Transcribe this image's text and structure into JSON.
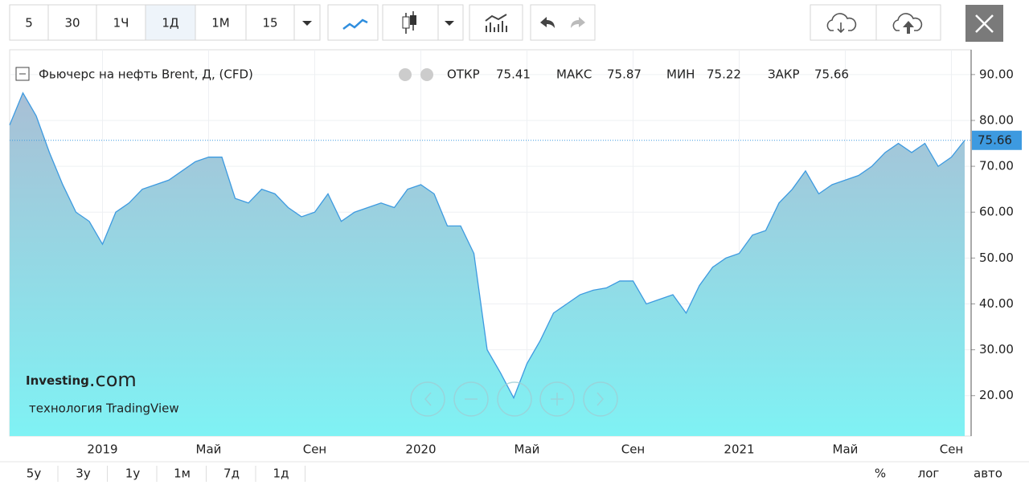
{
  "toolbar": {
    "intervals": [
      "5",
      "30",
      "1Ч",
      "1Д",
      "1М",
      "15"
    ]
  },
  "legend": {
    "title": "Фьючерс на нефть Brent, Д, (CFD)",
    "open_label": "ОТКР",
    "open": 75.41,
    "high_label": "МАКС",
    "high": 75.87,
    "low_label": "МИН",
    "low": 75.22,
    "close_label": "ЗАКР",
    "close": 75.66
  },
  "watermark": {
    "brand": "Investing",
    "brand_suffix": ".com",
    "tagline": "технология TradingView"
  },
  "chart_data": {
    "type": "area",
    "color": "#3d9ae0",
    "categories": [
      null,
      null,
      null,
      null,
      null,
      null,
      null,
      "2019",
      null,
      null,
      null,
      null,
      null,
      null,
      null,
      "Май",
      null,
      null,
      null,
      null,
      null,
      null,
      null,
      "Сен",
      null,
      null,
      null,
      null,
      null,
      null,
      null,
      "2020",
      null,
      null,
      null,
      null,
      null,
      null,
      null,
      "Май",
      null,
      null,
      null,
      null,
      null,
      null,
      null,
      "Сен",
      null,
      null,
      null,
      null,
      null,
      null,
      null,
      "2021",
      null,
      null,
      null,
      null,
      null,
      null,
      null,
      "Май",
      null,
      null,
      null,
      null,
      null,
      null,
      null,
      "Сен",
      null
    ],
    "values": [
      79,
      86,
      81,
      73,
      66,
      60,
      58,
      53,
      60,
      62,
      65,
      66,
      67,
      69,
      71,
      72,
      72,
      63,
      62,
      65,
      64,
      61,
      59,
      60,
      64,
      58,
      60,
      61,
      62,
      61,
      65,
      66,
      64,
      57,
      57,
      51,
      30,
      25,
      19.5,
      27,
      32,
      38,
      40,
      42,
      43,
      43.5,
      45,
      45,
      40,
      41,
      42,
      38,
      44,
      48,
      50,
      51,
      55,
      56,
      62,
      65,
      69,
      64,
      66,
      67,
      68,
      70,
      73,
      75,
      73,
      75,
      70,
      72,
      75.66
    ],
    "ylim": [
      11.2,
      95.4
    ],
    "yticks": [
      {
        "value": 20,
        "label": "20.00"
      },
      {
        "value": 30,
        "label": "30.00"
      },
      {
        "value": 40,
        "label": "40.00"
      },
      {
        "value": 50,
        "label": "50.00"
      },
      {
        "value": 60,
        "label": "60.00"
      },
      {
        "value": 70,
        "label": "70.00"
      },
      {
        "value": 80,
        "label": "80.00"
      },
      {
        "value": 90,
        "label": "90.00"
      }
    ],
    "grid": true
  },
  "footer": {
    "ranges": [
      "5у",
      "3у",
      "1у",
      "1м",
      "7д",
      "1д"
    ],
    "options": [
      "%",
      "лог",
      "авто"
    ]
  }
}
